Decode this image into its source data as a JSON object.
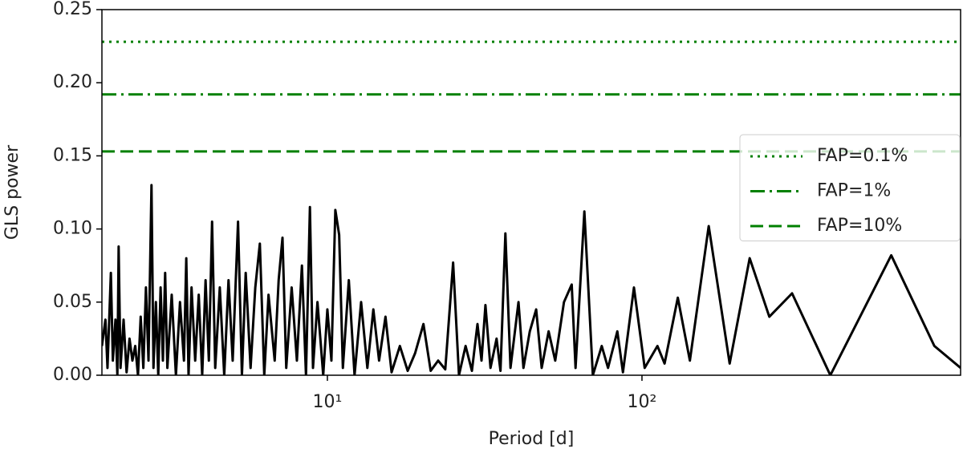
{
  "chart_data": {
    "type": "line",
    "xlabel": "Period [d]",
    "ylabel": "GLS power",
    "xscale": "log",
    "xlim": [
      1.92,
      1030
    ],
    "xticks": [
      {
        "value": 10,
        "label": "10¹"
      },
      {
        "value": 100,
        "label": "10²"
      }
    ],
    "ylim": [
      0,
      0.25
    ],
    "yticks": [
      {
        "value": 0,
        "label": "0.00"
      },
      {
        "value": 0.05,
        "label": "0.05"
      },
      {
        "value": 0.1,
        "label": "0.10"
      },
      {
        "value": 0.15,
        "label": "0.15"
      },
      {
        "value": 0.2,
        "label": "0.20"
      },
      {
        "value": 0.25,
        "label": "0.25"
      }
    ],
    "legend": "center right",
    "series": [
      {
        "color": "#000000",
        "x": [
          1.92,
          1.97,
          2.0,
          2.05,
          2.08,
          2.12,
          2.15,
          2.17,
          2.2,
          2.25,
          2.3,
          2.35,
          2.4,
          2.45,
          2.5,
          2.55,
          2.6,
          2.65,
          2.7,
          2.76,
          2.8,
          2.85,
          2.9,
          2.95,
          3.0,
          3.05,
          3.1,
          3.2,
          3.3,
          3.4,
          3.5,
          3.56,
          3.62,
          3.7,
          3.8,
          3.9,
          4.0,
          4.1,
          4.2,
          4.3,
          4.4,
          4.55,
          4.7,
          4.85,
          5.0,
          5.2,
          5.35,
          5.5,
          5.7,
          5.9,
          6.1,
          6.3,
          6.5,
          6.8,
          7.0,
          7.2,
          7.4,
          7.7,
          8.0,
          8.3,
          8.55,
          8.8,
          9.0,
          9.3,
          9.7,
          10.0,
          10.3,
          10.6,
          10.9,
          11.2,
          11.7,
          12.2,
          12.8,
          13.4,
          14.0,
          14.6,
          15.3,
          16.0,
          17.0,
          18.0,
          19.0,
          20.2,
          21.3,
          22.5,
          23.7,
          25.1,
          26.2,
          27.5,
          28.8,
          30.0,
          30.9,
          31.8,
          33.0,
          34.5,
          35.5,
          36.8,
          38.2,
          40.5,
          42.0,
          44.0,
          46.1,
          48.0,
          50.5,
          53.0,
          56.5,
          59.8,
          61.5,
          65.6,
          69.8,
          74.5,
          78.0,
          83.5,
          87.0,
          94.3,
          102,
          112,
          118,
          130,
          142,
          163,
          190,
          220,
          254,
          300,
          397,
          620,
          850,
          1030
        ],
        "values": [
          0.02,
          0.038,
          0.005,
          0.07,
          0.01,
          0.038,
          0.0,
          0.088,
          0.005,
          0.038,
          0.002,
          0.025,
          0.01,
          0.02,
          0.0,
          0.04,
          0.005,
          0.06,
          0.01,
          0.13,
          0.005,
          0.05,
          0.0,
          0.06,
          0.01,
          0.07,
          0.005,
          0.055,
          0.0,
          0.05,
          0.01,
          0.08,
          0.0,
          0.06,
          0.01,
          0.055,
          0.0,
          0.065,
          0.01,
          0.105,
          0.005,
          0.06,
          0.0,
          0.065,
          0.01,
          0.105,
          0.0,
          0.07,
          0.005,
          0.06,
          0.09,
          0.0,
          0.055,
          0.01,
          0.065,
          0.094,
          0.005,
          0.06,
          0.01,
          0.075,
          0.0,
          0.115,
          0.005,
          0.05,
          0.0,
          0.045,
          0.01,
          0.113,
          0.096,
          0.005,
          0.065,
          0.0,
          0.05,
          0.005,
          0.045,
          0.01,
          0.04,
          0.002,
          0.02,
          0.003,
          0.015,
          0.035,
          0.003,
          0.01,
          0.004,
          0.077,
          0.0,
          0.02,
          0.003,
          0.035,
          0.01,
          0.048,
          0.005,
          0.025,
          0.003,
          0.097,
          0.005,
          0.05,
          0.005,
          0.03,
          0.045,
          0.005,
          0.03,
          0.01,
          0.05,
          0.062,
          0.005,
          0.112,
          0.0,
          0.02,
          0.005,
          0.03,
          0.002,
          0.06,
          0.005,
          0.02,
          0.008,
          0.053,
          0.01,
          0.102,
          0.008,
          0.08,
          0.04,
          0.056,
          0.0,
          0.082,
          0.02,
          0.005
        ]
      }
    ],
    "hlines": [
      {
        "name": "FAP=0.1%",
        "value": 0.228,
        "style": "dotted",
        "color": "#008000"
      },
      {
        "name": "FAP=1%",
        "value": 0.192,
        "style": "dashdot",
        "color": "#008000"
      },
      {
        "name": "FAP=10%",
        "value": 0.153,
        "style": "dashed",
        "color": "#008000"
      }
    ]
  }
}
